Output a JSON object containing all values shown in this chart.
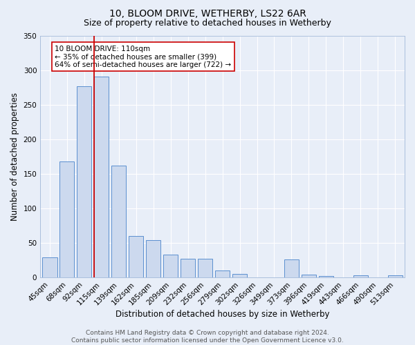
{
  "title": "10, BLOOM DRIVE, WETHERBY, LS22 6AR",
  "subtitle": "Size of property relative to detached houses in Wetherby",
  "xlabel": "Distribution of detached houses by size in Wetherby",
  "ylabel": "Number of detached properties",
  "bar_labels": [
    "45sqm",
    "68sqm",
    "92sqm",
    "115sqm",
    "139sqm",
    "162sqm",
    "185sqm",
    "209sqm",
    "232sqm",
    "256sqm",
    "279sqm",
    "302sqm",
    "326sqm",
    "349sqm",
    "373sqm",
    "396sqm",
    "419sqm",
    "443sqm",
    "466sqm",
    "490sqm",
    "513sqm"
  ],
  "bar_heights": [
    29,
    168,
    277,
    291,
    162,
    60,
    54,
    33,
    27,
    27,
    10,
    5,
    0,
    0,
    26,
    4,
    2,
    0,
    3,
    0,
    3
  ],
  "ylim": [
    0,
    350
  ],
  "yticks": [
    0,
    50,
    100,
    150,
    200,
    250,
    300,
    350
  ],
  "bar_color": "#ccd9ee",
  "bar_edge_color": "#5b8fcf",
  "vline_color": "#cc0000",
  "annotation_text": "10 BLOOM DRIVE: 110sqm\n← 35% of detached houses are smaller (399)\n64% of semi-detached houses are larger (722) →",
  "annotation_box_color": "#ffffff",
  "annotation_box_edge": "#cc0000",
  "footer_line1": "Contains HM Land Registry data © Crown copyright and database right 2024.",
  "footer_line2": "Contains public sector information licensed under the Open Government Licence v3.0.",
  "bg_color": "#e8eef8",
  "plot_bg_color": "#e8eef8",
  "grid_color": "#ffffff",
  "title_fontsize": 10,
  "subtitle_fontsize": 9,
  "axis_label_fontsize": 8.5,
  "tick_fontsize": 7.5,
  "footer_fontsize": 6.5
}
